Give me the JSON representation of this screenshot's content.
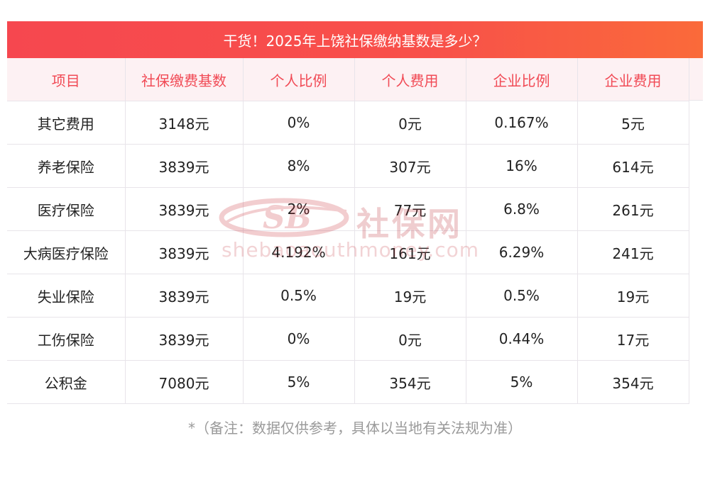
{
  "title": "干货！2025年上饶社保缴纳基数是多少？",
  "table": {
    "headers": [
      "项目",
      "社保缴费基数",
      "个人比例",
      "个人费用",
      "企业比例",
      "企业费用"
    ],
    "rows": [
      [
        "其它费用",
        "3148元",
        "0%",
        "0元",
        "0.167%",
        "5元"
      ],
      [
        "养老保险",
        "3839元",
        "8%",
        "307元",
        "16%",
        "614元"
      ],
      [
        "医疗保险",
        "3839元",
        "2%",
        "77元",
        "6.8%",
        "261元"
      ],
      [
        "大病医疗保险",
        "3839元",
        "4.192%",
        "161元",
        "6.29%",
        "241元"
      ],
      [
        "失业保险",
        "3839元",
        "0.5%",
        "19元",
        "0.5%",
        "19元"
      ],
      [
        "工伤保险",
        "3839元",
        "0%",
        "0元",
        "0.44%",
        "17元"
      ],
      [
        "公积金",
        "7080元",
        "5%",
        "354元",
        "5%",
        "354元"
      ]
    ]
  },
  "watermark": {
    "logo_text": "SB",
    "cn_text": "社保网",
    "url_text": "shebaoaouthmoney.com"
  },
  "note": "*（备注：数据仅供参考，具体以当地有关法规为准）",
  "colors": {
    "banner_start": "#f6474f",
    "banner_end": "#fa6a3a",
    "header_bg": "#fdf1f3",
    "header_text": "#f14a55",
    "note_text": "#9a9a9a"
  }
}
